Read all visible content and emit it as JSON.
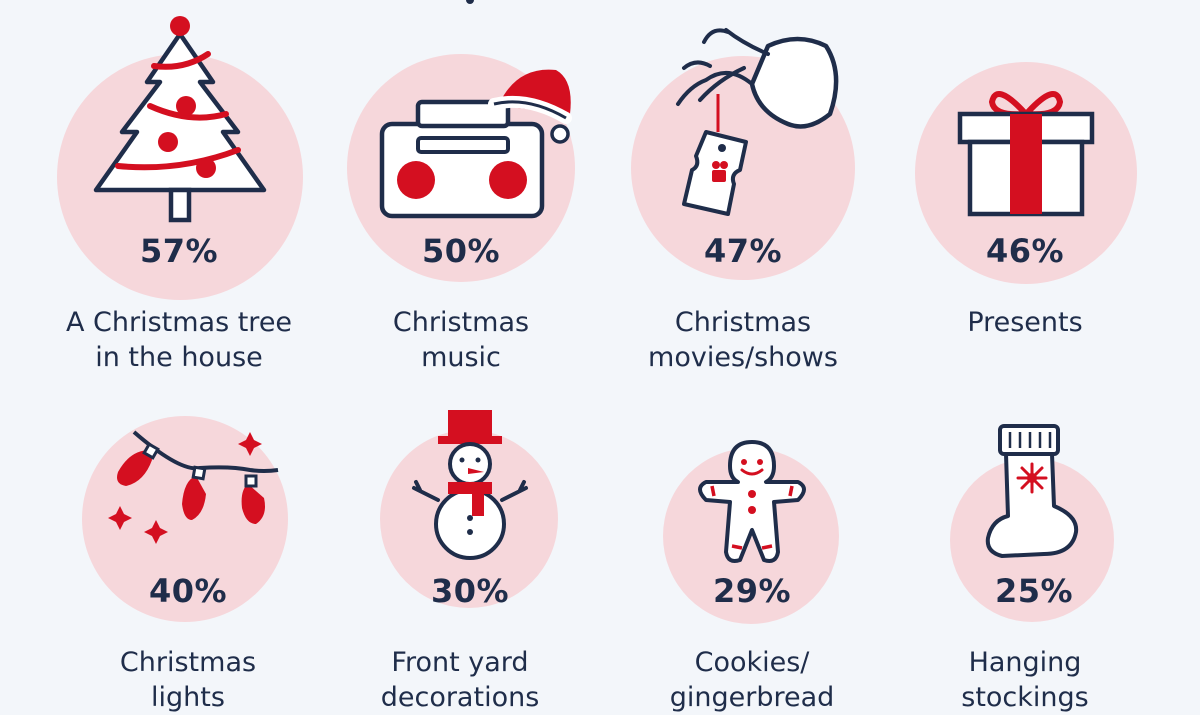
{
  "chart_data": {
    "type": "pictograph",
    "items": [
      {
        "label": "A Christmas tree\nin the house",
        "value": 57,
        "icon": "christmas-tree-icon"
      },
      {
        "label": "Christmas\nmusic",
        "value": 50,
        "icon": "boombox-santa-hat-icon"
      },
      {
        "label": "Christmas\nmovies/shows",
        "value": 47,
        "icon": "grinch-hand-ticket-icon"
      },
      {
        "label": "Presents",
        "value": 46,
        "icon": "gift-box-icon"
      },
      {
        "label": "Christmas\nlights",
        "value": 40,
        "icon": "string-lights-icon"
      },
      {
        "label": "Front yard\ndecorations",
        "value": 30,
        "icon": "snowman-icon"
      },
      {
        "label": "Cookies/\ngingerbread",
        "value": 29,
        "icon": "gingerbread-man-icon"
      },
      {
        "label": "Hanging\nstockings",
        "value": 25,
        "icon": "stocking-icon"
      }
    ],
    "value_suffix": "%"
  },
  "colors": {
    "background": "#f3f6fa",
    "circle": "#f6d7db",
    "red": "#d40f20",
    "navy": "#1f2d4a"
  }
}
